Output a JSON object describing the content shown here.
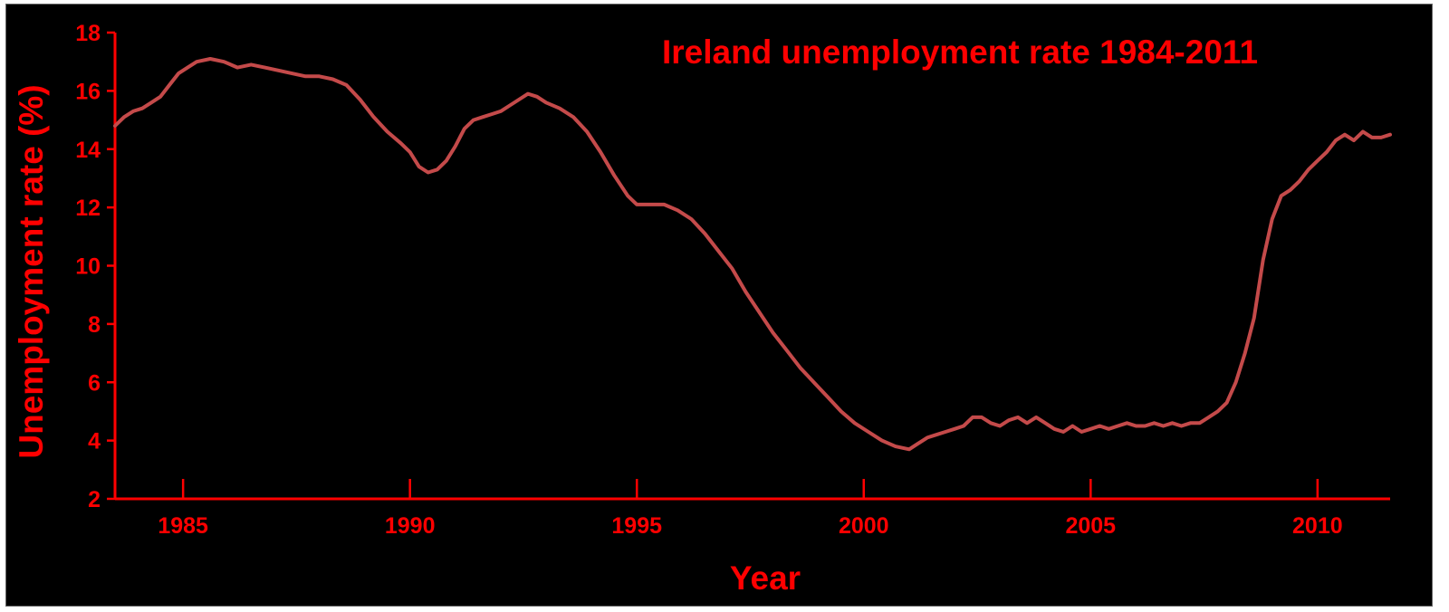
{
  "chart_data": {
    "type": "line",
    "title": "Ireland unemployment rate 1984-2011",
    "xlabel": "Year",
    "ylabel": "Unemployment rate (%)",
    "xlim": [
      1983.5,
      2011.6
    ],
    "ylim": [
      2,
      18
    ],
    "x_ticks": [
      1985,
      1990,
      1995,
      2000,
      2005,
      2010
    ],
    "y_ticks": [
      2,
      4,
      6,
      8,
      10,
      12,
      14,
      16,
      18
    ],
    "grid": false,
    "legend": "none",
    "colors": {
      "background": "#000000",
      "axis": "#ff0000",
      "text": "#ff0000",
      "line": "#c44a4a"
    },
    "series": [
      {
        "x": [
          1983.5,
          1983.7,
          1983.9,
          1984.1,
          1984.3,
          1984.5,
          1984.7,
          1984.9,
          1985.1,
          1985.3,
          1985.6,
          1985.9,
          1986.2,
          1986.5,
          1986.8,
          1987.1,
          1987.4,
          1987.7,
          1988.0,
          1988.3,
          1988.6,
          1988.9,
          1989.2,
          1989.5,
          1989.8,
          1990.0,
          1990.2,
          1990.4,
          1990.6,
          1990.8,
          1991.0,
          1991.2,
          1991.4,
          1991.6,
          1991.8,
          1992.0,
          1992.2,
          1992.4,
          1992.6,
          1992.8,
          1993.0,
          1993.3,
          1993.6,
          1993.9,
          1994.2,
          1994.5,
          1994.8,
          1995.0,
          1995.3,
          1995.6,
          1995.9,
          1996.2,
          1996.5,
          1996.8,
          1997.1,
          1997.4,
          1997.7,
          1998.0,
          1998.3,
          1998.6,
          1998.9,
          1999.2,
          1999.5,
          1999.8,
          2000.1,
          2000.4,
          2000.7,
          2001.0,
          2001.2,
          2001.4,
          2001.6,
          2001.8,
          2002.0,
          2002.2,
          2002.4,
          2002.6,
          2002.8,
          2003.0,
          2003.2,
          2003.4,
          2003.6,
          2003.8,
          2004.0,
          2004.2,
          2004.4,
          2004.6,
          2004.8,
          2005.0,
          2005.2,
          2005.4,
          2005.6,
          2005.8,
          2006.0,
          2006.2,
          2006.4,
          2006.6,
          2006.8,
          2007.0,
          2007.2,
          2007.4,
          2007.6,
          2007.8,
          2008.0,
          2008.2,
          2008.4,
          2008.6,
          2008.8,
          2009.0,
          2009.2,
          2009.4,
          2009.6,
          2009.8,
          2010.0,
          2010.2,
          2010.4,
          2010.6,
          2010.8,
          2011.0,
          2011.2,
          2011.4,
          2011.6
        ],
        "y": [
          14.8,
          15.1,
          15.3,
          15.4,
          15.6,
          15.8,
          16.2,
          16.6,
          16.8,
          17.0,
          17.1,
          17.0,
          16.8,
          16.9,
          16.8,
          16.7,
          16.6,
          16.5,
          16.5,
          16.4,
          16.2,
          15.7,
          15.1,
          14.6,
          14.2,
          13.9,
          13.4,
          13.2,
          13.3,
          13.6,
          14.1,
          14.7,
          15.0,
          15.1,
          15.2,
          15.3,
          15.5,
          15.7,
          15.9,
          15.8,
          15.6,
          15.4,
          15.1,
          14.6,
          13.9,
          13.1,
          12.4,
          12.1,
          12.1,
          12.1,
          11.9,
          11.6,
          11.1,
          10.5,
          9.9,
          9.1,
          8.4,
          7.7,
          7.1,
          6.5,
          6.0,
          5.5,
          5.0,
          4.6,
          4.3,
          4.0,
          3.8,
          3.7,
          3.9,
          4.1,
          4.2,
          4.3,
          4.4,
          4.5,
          4.8,
          4.8,
          4.6,
          4.5,
          4.7,
          4.8,
          4.6,
          4.8,
          4.6,
          4.4,
          4.3,
          4.5,
          4.3,
          4.4,
          4.5,
          4.4,
          4.5,
          4.6,
          4.5,
          4.5,
          4.6,
          4.5,
          4.6,
          4.5,
          4.6,
          4.6,
          4.8,
          5.0,
          5.3,
          6.0,
          7.0,
          8.2,
          10.2,
          11.6,
          12.4,
          12.6,
          12.9,
          13.3,
          13.6,
          13.9,
          14.3,
          14.5,
          14.3,
          14.6,
          14.4,
          14.4,
          14.5
        ]
      }
    ]
  }
}
